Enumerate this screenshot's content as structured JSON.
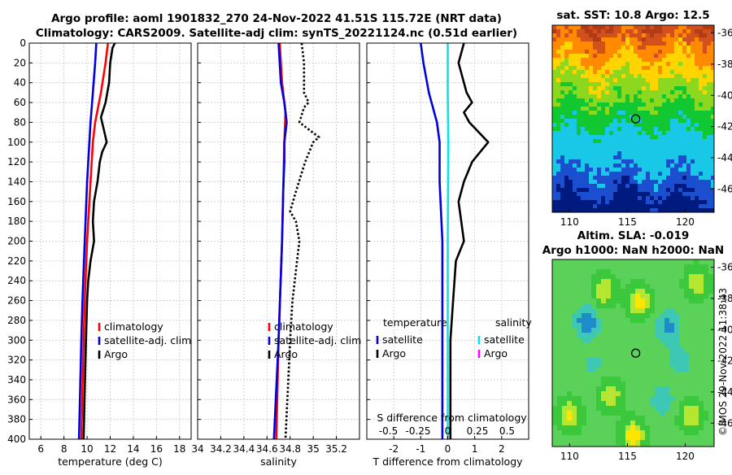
{
  "titles": {
    "line1": "Argo profile: aoml 1901832_270 24-Nov-2022 41.51S 115.72E (NRT data)",
    "line2": "Climatology: CARS2009. Satellite-adj clim: synTS_20221124.nc (0.51d earlier)"
  },
  "copyright": "©IMOS 29-Nov-2022 11:38:43",
  "colors": {
    "climatology": "#ff0000",
    "satellite": "#0000dd",
    "argo": "#000000",
    "t_sat": "#0000dd",
    "s_sat": "#00e5ee",
    "s_argo": "#ff00ff"
  },
  "chart_data": [
    {
      "type": "line",
      "id": "temperature",
      "xlabel": "temperature (deg C)",
      "ylabel": "",
      "xlim": [
        5,
        19
      ],
      "ylim": [
        400,
        0
      ],
      "xticks": [
        6,
        8,
        10,
        12,
        14,
        16,
        18
      ],
      "yticks": [
        0,
        20,
        40,
        60,
        80,
        100,
        120,
        140,
        160,
        180,
        200,
        220,
        240,
        260,
        280,
        300,
        320,
        340,
        360,
        380,
        400
      ],
      "grid": true,
      "legend": {
        "position": "bottom-right",
        "entries": [
          "climatology",
          "satellite-adj. clim",
          "Argo"
        ]
      },
      "series": [
        {
          "name": "climatology",
          "key": "climatology",
          "depth": [
            0,
            20,
            50,
            80,
            100,
            140,
            200,
            260,
            300,
            400
          ],
          "values": [
            11.8,
            11.6,
            11.2,
            10.7,
            10.5,
            10.3,
            10.0,
            9.8,
            9.7,
            9.5
          ]
        },
        {
          "name": "satellite-adj. clim",
          "key": "satellite",
          "depth": [
            0,
            20,
            50,
            80,
            100,
            140,
            200,
            260,
            300,
            400
          ],
          "values": [
            10.8,
            10.7,
            10.5,
            10.3,
            10.2,
            10.0,
            9.8,
            9.6,
            9.5,
            9.3
          ]
        },
        {
          "name": "Argo",
          "key": "argo",
          "depth": [
            0,
            5,
            20,
            40,
            60,
            75,
            85,
            100,
            110,
            120,
            140,
            160,
            180,
            200,
            220,
            240,
            260,
            300,
            350,
            400
          ],
          "values": [
            12.4,
            12.2,
            12.0,
            11.9,
            11.6,
            11.2,
            11.4,
            11.7,
            11.3,
            11.1,
            10.9,
            10.6,
            10.5,
            10.6,
            10.3,
            10.1,
            10.0,
            9.9,
            9.8,
            9.7
          ]
        }
      ]
    },
    {
      "type": "line",
      "id": "salinity",
      "xlabel": "salinity",
      "ylabel": "",
      "xlim": [
        34,
        35.4
      ],
      "ylim": [
        400,
        0
      ],
      "xticks": [
        34,
        34.2,
        34.4,
        34.6,
        34.8,
        35,
        35.2
      ],
      "tick_labels": [
        "34",
        "34.2",
        "34.4",
        "34.6",
        "34.8",
        "35",
        "35.2"
      ],
      "grid": true,
      "legend": {
        "position": "bottom-right",
        "entries": [
          "climatology",
          "satellite-adj. clim",
          "Argo"
        ]
      },
      "series": [
        {
          "name": "climatology",
          "key": "climatology",
          "depth": [
            0,
            40,
            70,
            100,
            150,
            200,
            300,
            400
          ],
          "values": [
            34.71,
            34.73,
            34.76,
            34.75,
            34.74,
            34.73,
            34.7,
            34.68
          ]
        },
        {
          "name": "satellite-adj. clim",
          "key": "satellite",
          "depth": [
            0,
            40,
            60,
            80,
            100,
            120,
            150,
            200,
            300,
            400
          ],
          "values": [
            34.7,
            34.72,
            34.75,
            34.77,
            34.75,
            34.75,
            34.74,
            34.73,
            34.7,
            34.66
          ]
        },
        {
          "name": "Argo",
          "key": "argo",
          "dash": true,
          "depth": [
            0,
            20,
            50,
            60,
            65,
            80,
            95,
            100,
            120,
            150,
            170,
            180,
            200,
            220,
            260,
            300,
            350,
            400
          ],
          "values": [
            34.9,
            34.92,
            34.92,
            34.96,
            34.92,
            34.88,
            35.05,
            35.0,
            34.93,
            34.85,
            34.8,
            34.85,
            34.88,
            34.86,
            34.82,
            34.8,
            34.78,
            34.76
          ]
        }
      ]
    },
    {
      "type": "line",
      "id": "difference",
      "xlabel": "T difference from climatology",
      "xlabel_top": "S difference from climatology",
      "xlim": [
        -3,
        3
      ],
      "ylim": [
        400,
        0
      ],
      "xticks": [
        -2,
        -1,
        0,
        1,
        2
      ],
      "s_ticks": [
        -0.5,
        -0.25,
        0,
        0.25,
        0.5
      ],
      "s_tick_labels": [
        "-0.5",
        "-0.25",
        "0",
        "0.25",
        "0.5"
      ],
      "grid": true,
      "legend_t": {
        "title": "temperature",
        "entries": [
          "satellite",
          "Argo"
        ]
      },
      "legend_s": {
        "title": "salinity",
        "entries": [
          "satellite",
          "Argo"
        ]
      },
      "series": [
        {
          "name": "T satellite",
          "key": "t_sat",
          "depth": [
            0,
            20,
            50,
            80,
            100,
            140,
            200,
            300,
            400
          ],
          "values": [
            -1.0,
            -0.9,
            -0.7,
            -0.4,
            -0.3,
            -0.3,
            -0.2,
            -0.2,
            -0.2
          ]
        },
        {
          "name": "S satellite",
          "key": "s_sat",
          "depth": [
            0,
            50,
            100,
            200,
            300,
            400
          ],
          "values": [
            0.0,
            0.0,
            0.02,
            0.0,
            0.0,
            0.0
          ]
        },
        {
          "name": "T Argo",
          "key": "argo",
          "depth": [
            0,
            20,
            50,
            60,
            70,
            80,
            100,
            110,
            120,
            140,
            160,
            180,
            200,
            220,
            260,
            300,
            400
          ],
          "values": [
            0.6,
            0.4,
            0.7,
            0.9,
            0.6,
            0.8,
            1.5,
            1.2,
            0.9,
            0.6,
            0.4,
            0.5,
            0.6,
            0.3,
            0.2,
            0.1,
            0.1
          ]
        }
      ]
    },
    {
      "type": "heatmap",
      "id": "sst",
      "title": "sat. SST: 10.8 Argo: 12.5",
      "xticks": [
        110,
        115,
        120
      ],
      "yticks": [
        -36,
        -38,
        -40,
        -42,
        -44,
        -46
      ],
      "xlim": [
        108.5,
        122.5
      ],
      "ylim": [
        -47.5,
        -35.5
      ],
      "marker": {
        "lon": 115.72,
        "lat": -41.51
      }
    },
    {
      "type": "heatmap",
      "id": "sla",
      "title_line1": "Altim. SLA: -0.019",
      "title_line2": "Argo h1000: NaN h2000: NaN",
      "xticks": [
        110,
        115,
        120
      ],
      "yticks": [
        -36,
        -38,
        -40,
        -42,
        -44,
        -46
      ],
      "xlim": [
        108.5,
        122.5
      ],
      "ylim": [
        -47.5,
        -35.5
      ],
      "marker": {
        "lon": 115.72,
        "lat": -41.51
      }
    }
  ]
}
